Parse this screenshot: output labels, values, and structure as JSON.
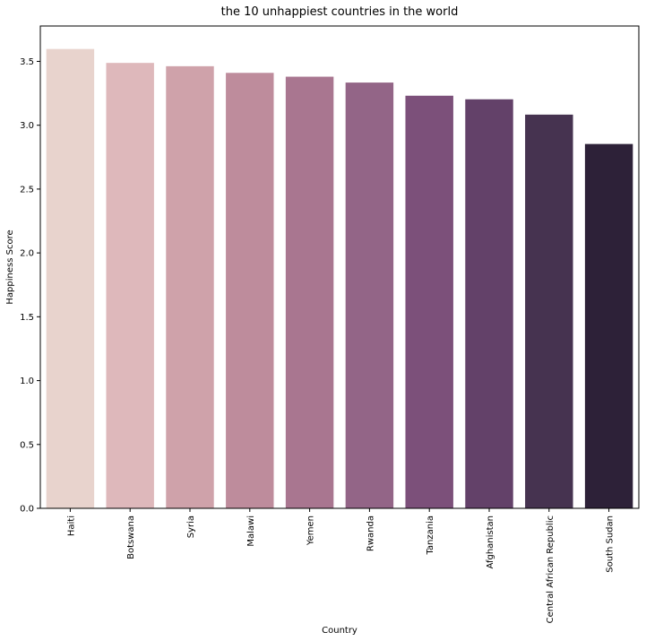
{
  "chart_data": {
    "type": "bar",
    "title": "the 10 unhappiest countries in the world",
    "xlabel": "Country",
    "ylabel": "Happiness Score",
    "categories": [
      "Haiti",
      "Botswana",
      "Syria",
      "Malawi",
      "Yemen",
      "Rwanda",
      "Tanzania",
      "Afghanistan",
      "Central African Republic",
      "South Sudan"
    ],
    "values": [
      3.597,
      3.488,
      3.462,
      3.41,
      3.38,
      3.334,
      3.231,
      3.203,
      3.083,
      2.853
    ],
    "colors": [
      "#e8d3cd",
      "#deb8bb",
      "#cfa2aa",
      "#be8c9c",
      "#a97690",
      "#936587",
      "#7c507a",
      "#634169",
      "#463350",
      "#2d2138"
    ],
    "ylim": [
      0,
      3.777
    ],
    "yticks": [
      0.0,
      0.5,
      1.0,
      1.5,
      2.0,
      2.5,
      3.0,
      3.5
    ],
    "ytick_labels": [
      "0.0",
      "0.5",
      "1.0",
      "1.5",
      "2.0",
      "2.5",
      "3.0",
      "3.5"
    ],
    "grid": false,
    "legend": false
  }
}
